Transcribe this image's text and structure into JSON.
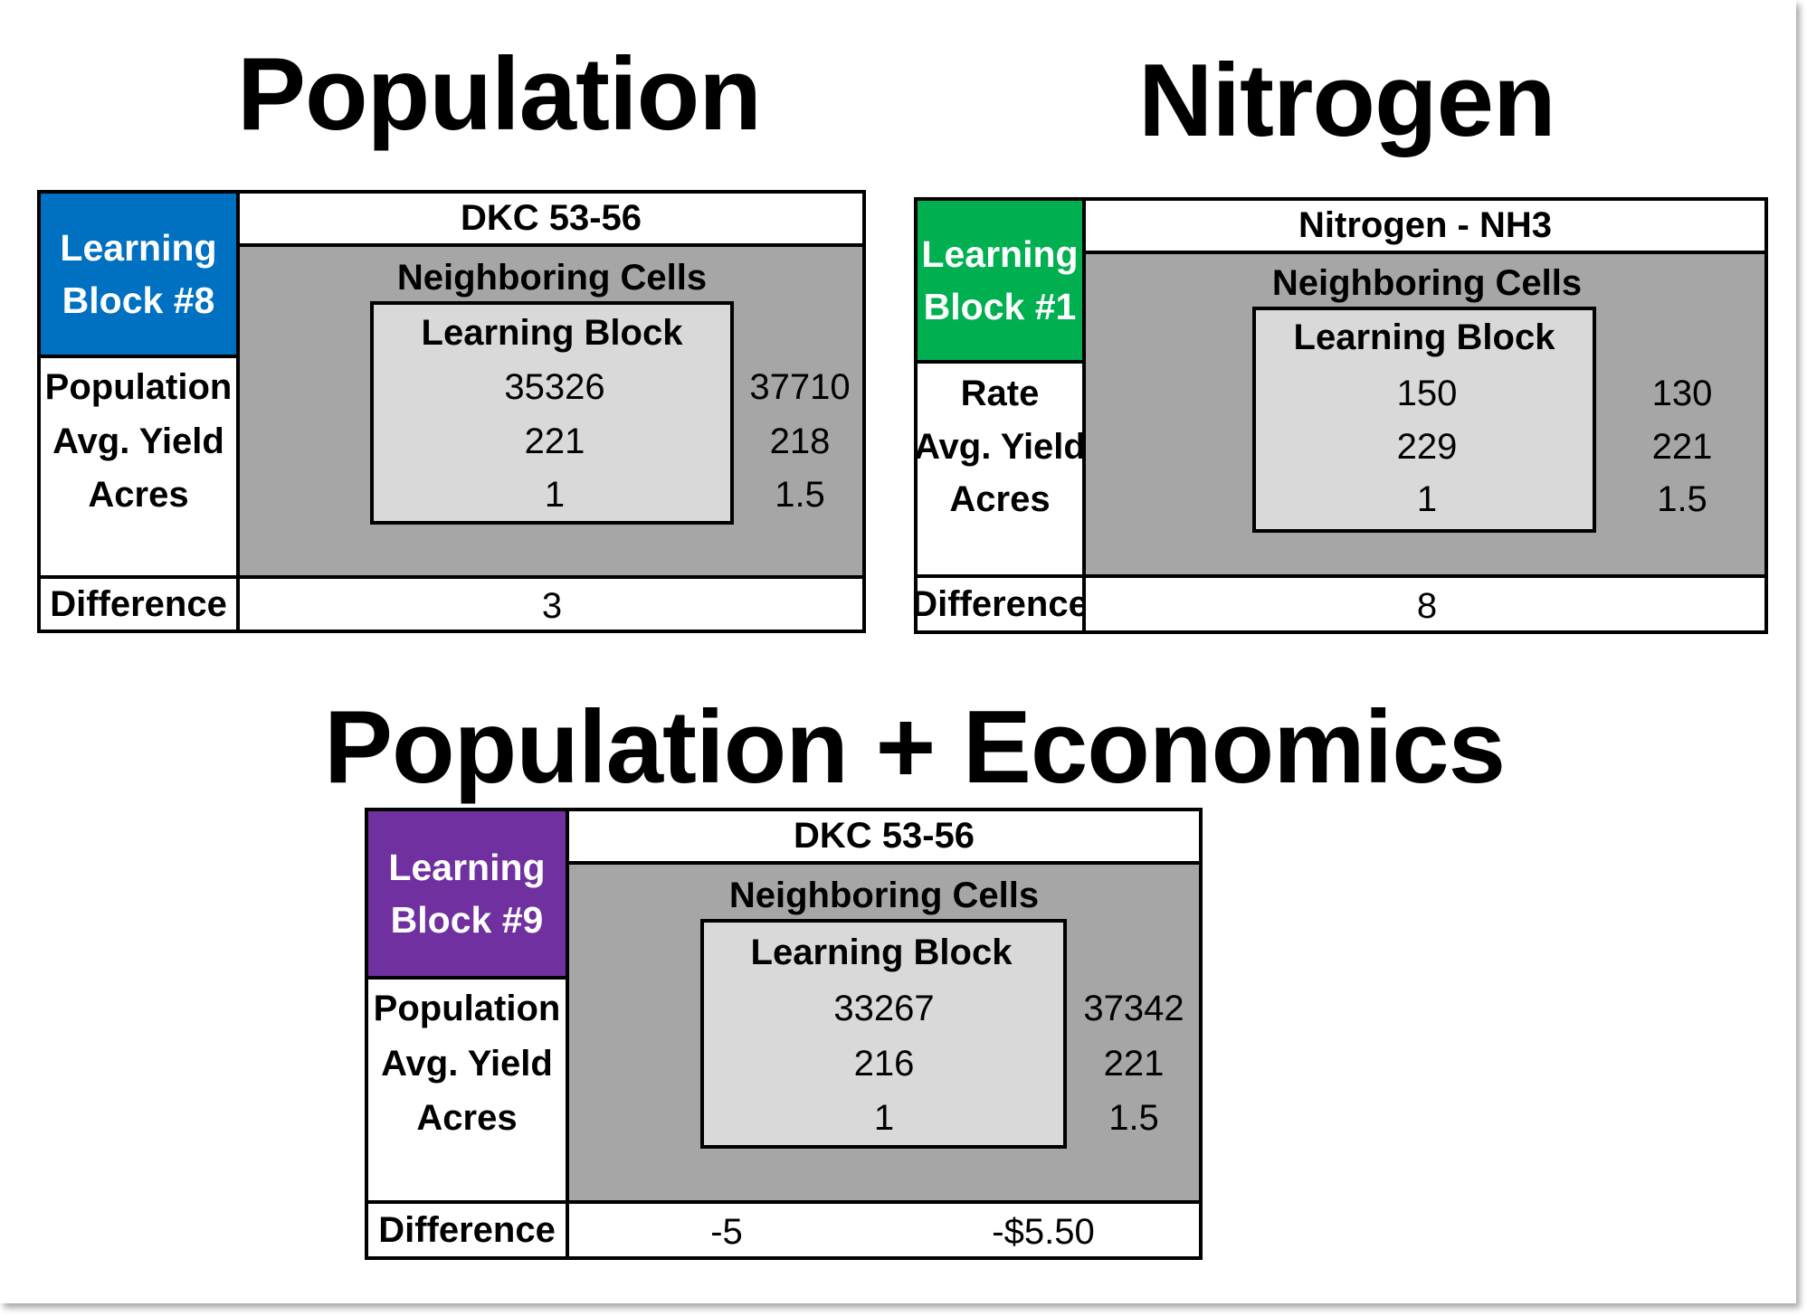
{
  "population": {
    "title": "Population",
    "learning_block": {
      "line1": "Learning",
      "line2": "Block #8",
      "color": "#0070c0"
    },
    "header": "DKC 53-56",
    "neighboring_label": "Neighboring Cells",
    "inner_label": "Learning Block",
    "metrics": [
      "Population",
      "Avg. Yield",
      "Acres"
    ],
    "inner_values": [
      "35326",
      "221",
      "1"
    ],
    "neighbor_values": [
      "37710",
      "218",
      "1.5"
    ],
    "difference_label": "Difference",
    "difference": "3"
  },
  "nitrogen": {
    "title": "Nitrogen",
    "learning_block": {
      "line1": "Learning",
      "line2": "Block #1",
      "color": "#00b050"
    },
    "header": "Nitrogen - NH3",
    "neighboring_label": "Neighboring Cells",
    "inner_label": "Learning Block",
    "metrics": [
      "Rate",
      "Avg. Yield",
      "Acres"
    ],
    "inner_values": [
      "150",
      "229",
      "1"
    ],
    "neighbor_values": [
      "130",
      "221",
      "1.5"
    ],
    "difference_label": "Difference",
    "difference": "8"
  },
  "economics": {
    "title": "Population + Economics",
    "learning_block": {
      "line1": "Learning",
      "line2": "Block #9",
      "color": "#7030a0"
    },
    "header": "DKC 53-56",
    "neighboring_label": "Neighboring Cells",
    "inner_label": "Learning Block",
    "metrics": [
      "Population",
      "Avg. Yield",
      "Acres"
    ],
    "inner_values": [
      "33267",
      "216",
      "1"
    ],
    "neighbor_values": [
      "37342",
      "221",
      "1.5"
    ],
    "difference_label": "Difference",
    "difference": "-5",
    "difference_dollars": "-$5.50"
  }
}
